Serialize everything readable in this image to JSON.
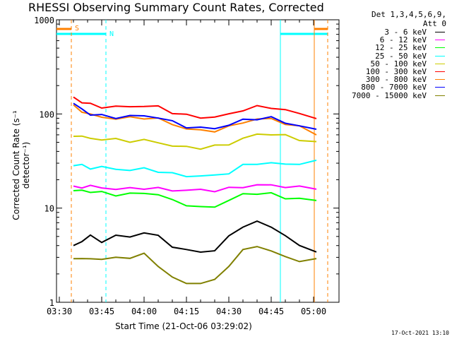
{
  "chart_data": {
    "type": "line",
    "title": "RHESSI Observing Summary Count Rates, Corrected",
    "xlabel": "Start Time (21-Oct-06 03:29:02)",
    "ylabel": "Corrected Count Rate (s⁻¹ detector⁻¹)",
    "y_scale": "log",
    "ylim": [
      1,
      1000
    ],
    "y_ticks": [
      "1",
      "10",
      "100",
      "1000"
    ],
    "xlim": [
      "03:29",
      "05:09"
    ],
    "x_ticks": [
      "03:30",
      "03:45",
      "04:00",
      "04:15",
      "04:30",
      "04:45",
      "05:00"
    ],
    "legend_header": [
      "Det 1,3,4,5,6,9,",
      "Att 0"
    ],
    "legend_position": "top-right, outside plot",
    "x_sample_times": [
      "03:35",
      "03:38",
      "03:41",
      "03:45",
      "03:50",
      "03:55",
      "04:00",
      "04:05",
      "04:10",
      "04:15",
      "04:20",
      "04:25",
      "04:30",
      "04:35",
      "04:40",
      "04:45",
      "04:50",
      "04:55",
      "05:01"
    ],
    "series": [
      {
        "name": "3 - 6 keV",
        "color": "#000000",
        "values": [
          4,
          4.5,
          5,
          4.5,
          5,
          5,
          5.5,
          5,
          4,
          3.5,
          3.5,
          3.5,
          5,
          6.5,
          7,
          6.5,
          5,
          4,
          3.5
        ]
      },
      {
        "name": "6 - 12 keV",
        "color": "#ff00ff",
        "values": [
          16.5,
          17,
          17,
          16.5,
          16,
          16,
          16.5,
          16,
          15.5,
          15.5,
          15.5,
          15.5,
          16,
          17,
          17.5,
          17.5,
          17,
          16.5,
          16.5
        ]
      },
      {
        "name": "12 - 25 keV",
        "color": "#00ff00",
        "values": [
          15,
          15.5,
          15,
          14.5,
          14,
          14,
          14.5,
          14,
          12,
          11,
          10,
          10.5,
          12,
          14,
          14.5,
          14,
          13,
          12.5,
          12
        ]
      },
      {
        "name": "25 - 50 keV",
        "color": "#00ffff",
        "values": [
          29,
          28,
          27,
          27,
          26,
          25.5,
          26,
          25,
          23,
          22,
          22,
          22,
          24,
          28,
          30,
          30,
          29,
          30,
          31
        ]
      },
      {
        "name": "50 - 100 keV",
        "color": "#cccc00",
        "values": [
          60,
          57,
          55,
          54,
          53,
          52,
          52,
          50,
          46,
          44,
          44,
          45,
          48,
          55,
          60,
          62,
          58,
          54,
          50
        ]
      },
      {
        "name": "100 - 300 keV",
        "color": "#ff0000",
        "values": [
          150,
          135,
          125,
          120,
          118,
          120,
          122,
          118,
          105,
          96,
          92,
          93,
          98,
          112,
          118,
          118,
          110,
          100,
          92
        ]
      },
      {
        "name": "300 - 800 keV",
        "color": "#ff8000",
        "values": [
          120,
          108,
          98,
          92,
          90,
          90,
          92,
          88,
          78,
          70,
          66,
          67,
          72,
          82,
          88,
          88,
          80,
          72,
          62
        ]
      },
      {
        "name": "800 - 7000 keV",
        "color": "#0000ff",
        "values": [
          128,
          112,
          100,
          95,
          93,
          94,
          96,
          92,
          82,
          74,
          70,
          71,
          76,
          86,
          90,
          90,
          82,
          74,
          68
        ]
      },
      {
        "name": "7000 - 15000 keV",
        "color": "#808000",
        "values": [
          3,
          2.8,
          3,
          2.8,
          3,
          3,
          3.2,
          2.5,
          1.8,
          1.6,
          1.6,
          1.7,
          2.5,
          3.5,
          4,
          3.5,
          3,
          2.8,
          2.8
        ]
      }
    ],
    "annotations": [
      {
        "text": "S",
        "color": "#ff8000"
      },
      {
        "text": "N",
        "color": "#00ffff"
      }
    ],
    "footer_timestamp": "17-Oct-2021 13:10"
  }
}
